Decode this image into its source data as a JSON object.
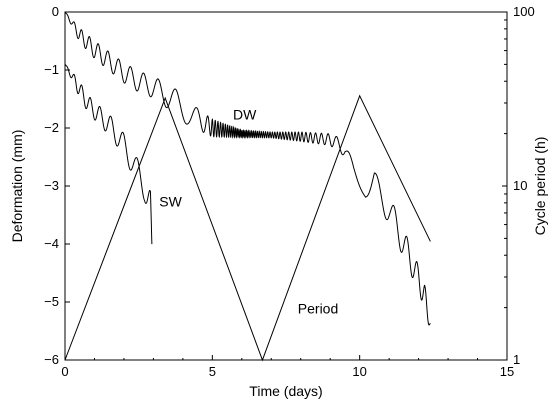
{
  "chart_data": {
    "type": "line",
    "xlabel": "Time (days)",
    "ylabel": "Deformation (mm)",
    "y2label": "Cycle period (h)",
    "xlim": [
      0,
      15
    ],
    "ylim": [
      -6,
      0
    ],
    "y2lim": [
      1,
      100
    ],
    "y2scale": "log",
    "x_ticks": [
      "0",
      "5",
      "10",
      "15"
    ],
    "y_ticks": [
      "0",
      "−1",
      "−2",
      "−3",
      "−4",
      "−5",
      "−6"
    ],
    "y2_ticks": [
      "1",
      "10",
      "100"
    ],
    "grid": false,
    "legend": "none",
    "annotations": [
      {
        "text": "DW",
        "x": 5.7,
        "y": -1.85
      },
      {
        "text": "SW",
        "x": 3.2,
        "y": -3.35
      },
      {
        "text": "Period",
        "x": 7.9,
        "y": -5.2
      }
    ],
    "series": [
      {
        "name": "DW",
        "axis": "left",
        "oscillating": true,
        "x": [
          0,
          0.5,
          1.0,
          1.5,
          2.0,
          2.5,
          3.0,
          3.5,
          3.8,
          4.2,
          5.0,
          6.0,
          7.0,
          8.0,
          9.0,
          9.5,
          9.8,
          10.2,
          10.5,
          11.0,
          11.5,
          12.0,
          12.2,
          12.4
        ],
        "y": [
          0,
          -0.4,
          -0.65,
          -0.85,
          -1.05,
          -1.2,
          -1.3,
          -1.45,
          -1.6,
          -1.75,
          -2.0,
          -2.1,
          -2.12,
          -2.15,
          -2.2,
          -2.35,
          -2.75,
          -3.15,
          -3.0,
          -3.4,
          -4.0,
          -4.6,
          -4.9,
          -5.4
        ],
        "amplitude": [
          0,
          0.12,
          0.15,
          0.16,
          0.17,
          0.18,
          0.18,
          0.22,
          0.25,
          0.2,
          0.15,
          0.06,
          0.05,
          0.08,
          0.1,
          0.14,
          0.1,
          0.05,
          0.25,
          0.25,
          0.25,
          0.22,
          0.22,
          0.1
        ],
        "cycle_period_days": [
          0.25,
          0.25,
          0.3,
          0.35,
          0.4,
          0.45,
          0.5,
          0.6,
          0.7,
          0.8,
          0.1,
          0.05,
          0.08,
          0.12,
          0.25,
          0.5,
          0.8,
          1.0,
          0.8,
          0.55,
          0.4,
          0.3,
          0.25,
          0.2
        ]
      },
      {
        "name": "SW",
        "axis": "left",
        "oscillating": true,
        "x": [
          0,
          0.4,
          0.8,
          1.2,
          1.6,
          2.0,
          2.4,
          2.7,
          2.9,
          2.95
        ],
        "y": [
          -0.9,
          -1.25,
          -1.6,
          -1.8,
          -2.0,
          -2.3,
          -2.7,
          -3.0,
          -3.4,
          -4.0
        ],
        "amplitude": [
          0,
          0.12,
          0.15,
          0.16,
          0.18,
          0.2,
          0.22,
          0.25,
          0.3,
          0.1
        ],
        "cycle_period_days": [
          0.25,
          0.25,
          0.3,
          0.35,
          0.4,
          0.45,
          0.5,
          0.5,
          0.3,
          0.1
        ]
      },
      {
        "name": "Period",
        "axis": "right",
        "oscillating": false,
        "x": [
          0,
          3.4,
          6.7,
          10.0,
          12.4
        ],
        "y": [
          1,
          32,
          1,
          33,
          4.8
        ]
      }
    ]
  }
}
